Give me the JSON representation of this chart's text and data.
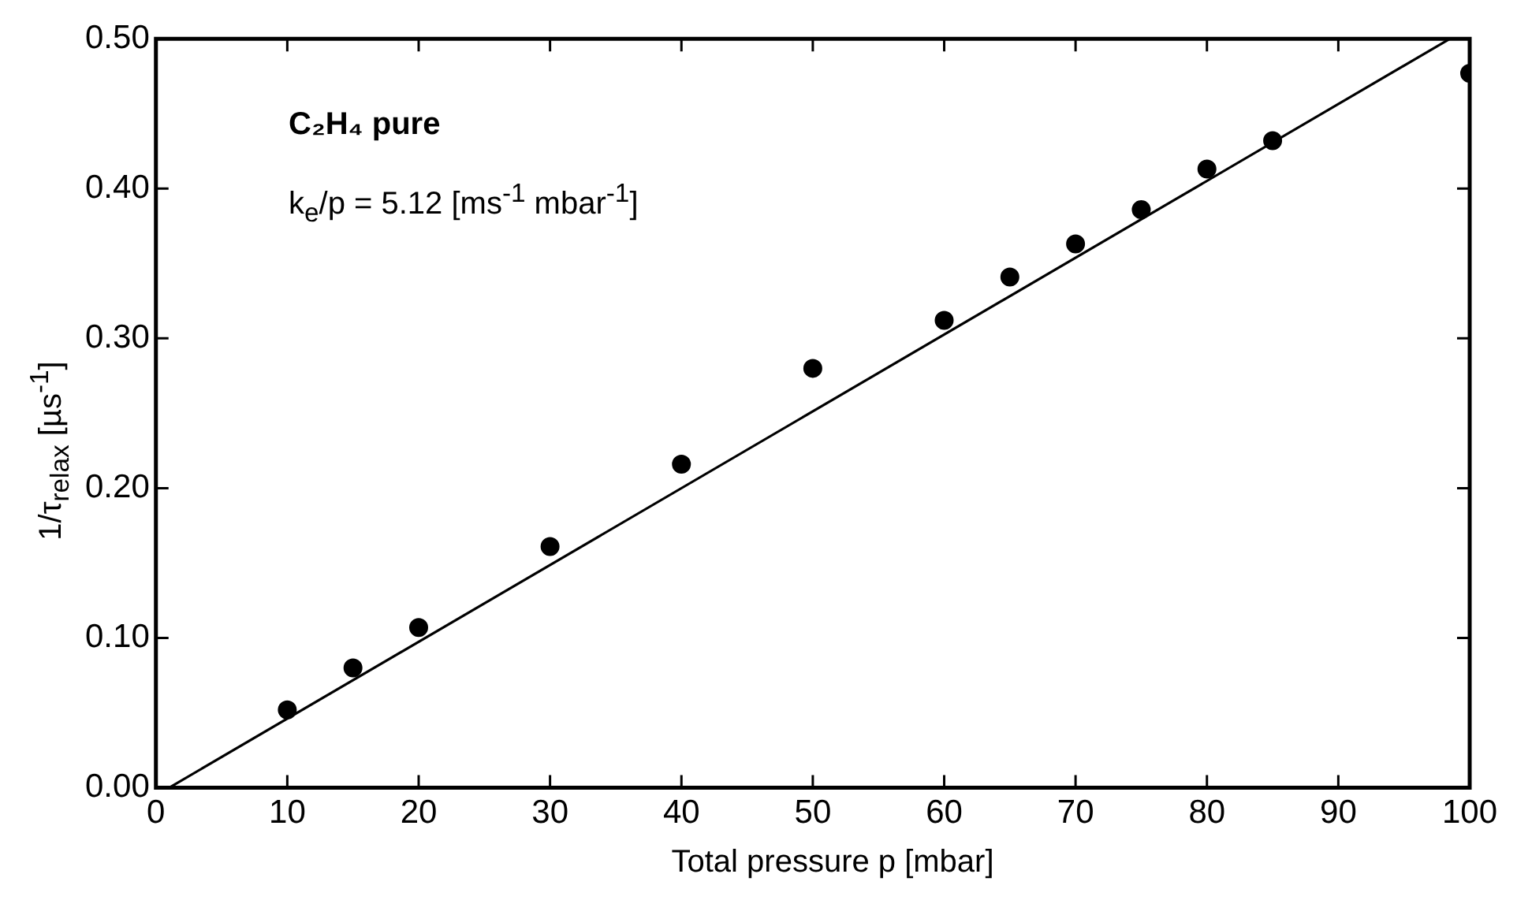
{
  "chart_data": {
    "type": "scatter",
    "xlabel": "Total pressure p [mbar]",
    "ylabel": "1/τ$_{relax}$ [µs$^{-1}$]",
    "annotations": [
      "C₂H₄ pure",
      "k$_{e}$/p = 5.12 [ms$^{-1}$ mbar$^{-1}$]"
    ],
    "x": [
      10,
      15,
      20,
      30,
      40,
      50,
      60,
      65,
      70,
      75,
      80,
      85,
      100
    ],
    "series": [
      {
        "type": "scatter",
        "color": "#000000",
        "marker": "circle",
        "values": [
          0.052,
          0.08,
          0.107,
          0.161,
          0.216,
          0.28,
          0.312,
          0.341,
          0.363,
          0.386,
          0.413,
          0.432,
          0.477
        ]
      },
      {
        "type": "line",
        "color": "#000000",
        "marker": "none",
        "line_style": "solid",
        "x": [
          1,
          98.5
        ],
        "values": [
          0,
          0.5
        ]
      }
    ],
    "xlim": [
      0,
      100
    ],
    "xticks": [
      0,
      10,
      20,
      30,
      40,
      50,
      60,
      70,
      80,
      90,
      100
    ],
    "ylim": [
      0,
      0.5
    ],
    "yticks": [
      {
        "value": 0,
        "label": "0.00"
      },
      {
        "value": 0.1,
        "label": "0.10"
      },
      {
        "value": 0.2,
        "label": "0.20"
      },
      {
        "value": 0.3,
        "label": "0.30"
      },
      {
        "value": 0.4,
        "label": "0.40"
      },
      {
        "value": 0.5,
        "label": "0.50"
      }
    ],
    "grid": false,
    "legend": false
  }
}
